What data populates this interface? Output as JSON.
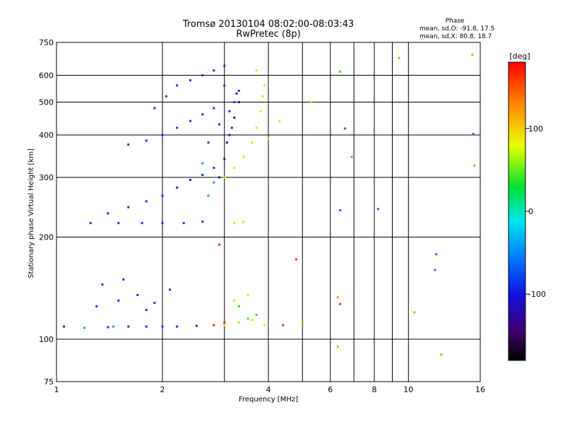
{
  "chart_data": {
    "type": "scatter",
    "title_line1": "Tromsø 20130104 08:02:00-08:03:43",
    "title_line2": "RwPretec (8p)",
    "xlabel": "Frequency [MHz]",
    "ylabel": "Stationary phase Virtual Height [km]",
    "x_scale": "log",
    "y_scale": "log",
    "xlim": [
      1,
      16
    ],
    "ylim": [
      75,
      750
    ],
    "x_ticks": [
      "1",
      "2",
      "4",
      "6",
      "8",
      "10",
      "16"
    ],
    "x_tick_values": [
      1,
      2,
      4,
      6,
      8,
      10,
      16
    ],
    "x_minor_ticks": [
      3,
      5,
      7,
      9
    ],
    "y_ticks": [
      "75",
      "100",
      "200",
      "300",
      "400",
      "500",
      "600",
      "750"
    ],
    "y_tick_values": [
      75,
      100,
      200,
      300,
      400,
      500,
      600,
      750
    ],
    "grid": true,
    "stats": {
      "heading": "Phase",
      "line1": "mean, sd,O: -91.8, 17.5",
      "line2": "mean, sd,X:  80.8, 18.7"
    },
    "colorbar": {
      "label": "[deg]",
      "ticks": [
        "100",
        "0",
        "-100"
      ],
      "tick_values": [
        100,
        0,
        -100
      ],
      "range": [
        -180,
        180
      ],
      "colormap": "rainbow"
    },
    "series": [
      {
        "phase": -100,
        "color": "#1a2ee0",
        "points": [
          [
            1.05,
            109
          ],
          [
            1.2,
            108
          ],
          [
            1.4,
            108.5
          ],
          [
            1.6,
            109
          ],
          [
            1.8,
            109
          ],
          [
            2.0,
            109
          ],
          [
            2.2,
            109
          ],
          [
            2.5,
            109.5
          ],
          [
            1.3,
            125
          ],
          [
            1.5,
            130
          ],
          [
            1.7,
            135
          ],
          [
            1.9,
            128
          ],
          [
            2.1,
            140
          ],
          [
            1.35,
            145
          ],
          [
            1.55,
            150
          ],
          [
            1.8,
            122
          ],
          [
            1.25,
            220
          ],
          [
            1.5,
            220
          ],
          [
            1.75,
            220
          ],
          [
            2.0,
            220
          ],
          [
            2.3,
            220
          ],
          [
            2.6,
            222
          ],
          [
            1.4,
            235
          ],
          [
            1.6,
            245
          ],
          [
            1.8,
            255
          ],
          [
            2.0,
            265
          ],
          [
            2.2,
            280
          ],
          [
            2.4,
            295
          ],
          [
            2.6,
            305
          ],
          [
            2.8,
            320
          ],
          [
            1.6,
            375
          ],
          [
            1.8,
            385
          ],
          [
            2.0,
            400
          ],
          [
            2.2,
            420
          ],
          [
            2.4,
            440
          ],
          [
            2.6,
            460
          ],
          [
            2.8,
            480
          ],
          [
            1.9,
            480
          ],
          [
            2.05,
            520
          ],
          [
            2.2,
            560
          ],
          [
            2.4,
            580
          ],
          [
            2.6,
            600
          ],
          [
            2.8,
            620
          ],
          [
            3.0,
            640
          ],
          [
            2.7,
            380
          ],
          [
            2.9,
            430
          ],
          [
            3.1,
            470
          ],
          [
            3.2,
            500
          ],
          [
            3.3,
            540
          ],
          [
            3.0,
            560
          ]
        ]
      },
      {
        "phase": -140,
        "color": "#3b1080",
        "points": [
          [
            2.9,
            300
          ],
          [
            3.0,
            340
          ],
          [
            3.1,
            400
          ],
          [
            3.2,
            450
          ],
          [
            3.3,
            500
          ],
          [
            3.15,
            420
          ],
          [
            3.05,
            380
          ],
          [
            3.25,
            530
          ]
        ]
      },
      {
        "phase": -40,
        "color": "#14a0e8",
        "points": [
          [
            1.2,
            108
          ],
          [
            1.45,
            109
          ],
          [
            2.7,
            265
          ],
          [
            2.8,
            290
          ],
          [
            2.6,
            330
          ]
        ]
      },
      {
        "phase": 90,
        "color": "#c8f000",
        "points": [
          [
            3.0,
            110
          ],
          [
            3.3,
            112
          ],
          [
            3.6,
            114
          ],
          [
            3.9,
            110
          ],
          [
            3.2,
            130
          ],
          [
            3.5,
            135
          ],
          [
            3.2,
            220
          ],
          [
            3.4,
            222
          ],
          [
            3.0,
            300
          ],
          [
            3.2,
            320
          ],
          [
            3.4,
            345
          ],
          [
            3.6,
            380
          ],
          [
            3.7,
            420
          ],
          [
            3.8,
            470
          ],
          [
            3.85,
            520
          ],
          [
            3.9,
            560
          ],
          [
            3.7,
            620
          ],
          [
            4.0,
            390
          ],
          [
            4.3,
            440
          ],
          [
            5.3,
            500
          ]
        ]
      },
      {
        "phase": 30,
        "color": "#3cd820",
        "points": [
          [
            3.5,
            115
          ],
          [
            3.7,
            118
          ],
          [
            6.4,
            615
          ],
          [
            6.9,
            345
          ],
          [
            3.3,
            125
          ]
        ]
      },
      {
        "phase": 170,
        "color": "#e83010",
        "points": [
          [
            2.8,
            110
          ],
          [
            3.0,
            112
          ],
          [
            4.4,
            110
          ],
          [
            4.8,
            172
          ],
          [
            6.4,
            127
          ],
          [
            2.9,
            190
          ]
        ]
      },
      {
        "phase": 130,
        "color": "#f0a000",
        "points": [
          [
            5.0,
            112
          ],
          [
            6.3,
            95
          ],
          [
            6.3,
            133
          ],
          [
            9.4,
            675
          ],
          [
            10.4,
            120
          ],
          [
            15.2,
            690
          ],
          [
            15.4,
            325
          ],
          [
            12.4,
            90
          ]
        ]
      },
      {
        "phase": -60,
        "color": "#2060f0",
        "points": [
          [
            6.6,
            418
          ],
          [
            8.2,
            242
          ],
          [
            11.9,
            160
          ],
          [
            12.0,
            178
          ],
          [
            15.3,
            403
          ],
          [
            6.4,
            240
          ]
        ]
      }
    ]
  }
}
